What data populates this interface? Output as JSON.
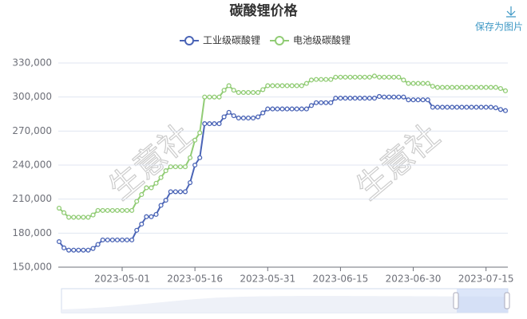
{
  "chart_data": {
    "type": "line",
    "title": "碳酸锂价格",
    "save_label": "保存为图片",
    "watermark": "生意社",
    "x": [
      "2023-04-18",
      "2023-04-19",
      "2023-04-20",
      "2023-04-21",
      "2023-04-22",
      "2023-04-23",
      "2023-04-24",
      "2023-04-25",
      "2023-04-26",
      "2023-04-27",
      "2023-04-28",
      "2023-04-29",
      "2023-04-30",
      "2023-05-01",
      "2023-05-02",
      "2023-05-03",
      "2023-05-04",
      "2023-05-05",
      "2023-05-06",
      "2023-05-07",
      "2023-05-08",
      "2023-05-09",
      "2023-05-10",
      "2023-05-11",
      "2023-05-12",
      "2023-05-13",
      "2023-05-14",
      "2023-05-15",
      "2023-05-16",
      "2023-05-17",
      "2023-05-18",
      "2023-05-19",
      "2023-05-20",
      "2023-05-21",
      "2023-05-22",
      "2023-05-23",
      "2023-05-24",
      "2023-05-25",
      "2023-05-26",
      "2023-05-27",
      "2023-05-28",
      "2023-05-29",
      "2023-05-30",
      "2023-05-31",
      "2023-06-01",
      "2023-06-02",
      "2023-06-03",
      "2023-06-04",
      "2023-06-05",
      "2023-06-06",
      "2023-06-07",
      "2023-06-08",
      "2023-06-09",
      "2023-06-10",
      "2023-06-11",
      "2023-06-12",
      "2023-06-13",
      "2023-06-14",
      "2023-06-15",
      "2023-06-16",
      "2023-06-17",
      "2023-06-18",
      "2023-06-19",
      "2023-06-20",
      "2023-06-21",
      "2023-06-22",
      "2023-06-23",
      "2023-06-24",
      "2023-06-25",
      "2023-06-26",
      "2023-06-27",
      "2023-06-28",
      "2023-06-29",
      "2023-06-30",
      "2023-07-01",
      "2023-07-02",
      "2023-07-03",
      "2023-07-04",
      "2023-07-05",
      "2023-07-06",
      "2023-07-07",
      "2023-07-08",
      "2023-07-09",
      "2023-07-10",
      "2023-07-11",
      "2023-07-12",
      "2023-07-13",
      "2023-07-14",
      "2023-07-15",
      "2023-07-16",
      "2023-07-17",
      "2023-07-18",
      "2023-07-19"
    ],
    "xticks": [
      "2023-05-01",
      "2023-05-16",
      "2023-05-31",
      "2023-06-15",
      "2023-06-30",
      "2023-07-15"
    ],
    "ylim": [
      150000,
      330000
    ],
    "yticks": [
      {
        "value": 150000,
        "label": "150,000"
      },
      {
        "value": 180000,
        "label": "180,000"
      },
      {
        "value": 210000,
        "label": "210,000"
      },
      {
        "value": 240000,
        "label": "240,000"
      },
      {
        "value": 270000,
        "label": "270,000"
      },
      {
        "value": 300000,
        "label": "300,000"
      },
      {
        "value": 330000,
        "label": "330,000"
      }
    ],
    "grid": true,
    "series": [
      {
        "name": "工业级碳酸锂",
        "color": "#4a64b6",
        "values": [
          172500,
          167000,
          165000,
          165000,
          165000,
          165000,
          165000,
          166500,
          170000,
          174000,
          174000,
          174000,
          174000,
          174000,
          174000,
          174000,
          182500,
          188000,
          194500,
          194500,
          196500,
          204500,
          209000,
          216500,
          216500,
          216500,
          216500,
          224500,
          240000,
          246500,
          276500,
          276500,
          276500,
          276500,
          282500,
          286500,
          283500,
          281500,
          281500,
          281500,
          281500,
          282500,
          286000,
          289500,
          289500,
          289500,
          289500,
          289500,
          289500,
          289500,
          289500,
          289500,
          292500,
          295000,
          295000,
          295000,
          295000,
          299000,
          299000,
          299000,
          299000,
          299000,
          299000,
          299000,
          299000,
          299000,
          300500,
          300000,
          300000,
          300000,
          300000,
          300000,
          297500,
          297500,
          297500,
          297500,
          297500,
          291000,
          291000,
          291000,
          291000,
          291000,
          291000,
          291000,
          291000,
          291000,
          291000,
          291000,
          291000,
          291000,
          290500,
          289000,
          288000
        ]
      },
      {
        "name": "电池级碳酸锂",
        "color": "#91cc75",
        "values": [
          202000,
          198000,
          194000,
          194000,
          194000,
          194000,
          194000,
          196000,
          200000,
          200000,
          200000,
          200000,
          200000,
          200000,
          200000,
          200000,
          208000,
          214000,
          220000,
          220000,
          224000,
          229000,
          235000,
          238500,
          238500,
          238500,
          238500,
          246500,
          262000,
          268500,
          300000,
          300000,
          300000,
          300000,
          306000,
          310000,
          306000,
          304000,
          304000,
          304000,
          304000,
          304000,
          306500,
          310000,
          310000,
          310000,
          310000,
          310000,
          310000,
          310000,
          310000,
          312000,
          315000,
          315500,
          315500,
          315500,
          315500,
          317500,
          317500,
          317500,
          317500,
          317500,
          317500,
          317500,
          317500,
          318500,
          317500,
          317500,
          317500,
          317500,
          317500,
          315000,
          312000,
          312000,
          312000,
          312000,
          312000,
          309500,
          308500,
          308500,
          308500,
          308500,
          308500,
          308500,
          308500,
          308500,
          308500,
          308500,
          308500,
          308500,
          308500,
          307500,
          305500
        ]
      }
    ]
  }
}
